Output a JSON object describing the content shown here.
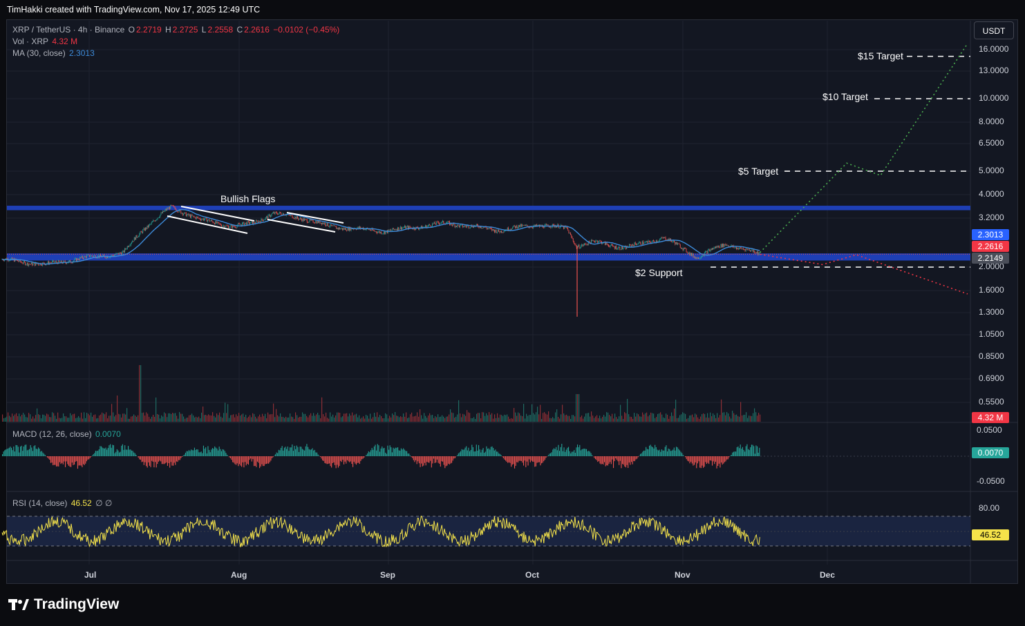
{
  "header": {
    "caption": "TimHakki created with TradingView.com, Nov 17, 2025 12:49 UTC"
  },
  "legend": {
    "symbol": "XRP / TetherUS · 4h · Binance",
    "o_label": "O",
    "o_value": "2.2719",
    "h_label": "H",
    "h_value": "2.2725",
    "l_label": "L",
    "l_value": "2.2558",
    "c_label": "C",
    "c_value": "2.2616",
    "change": "−0.0102 (−0.45%)",
    "vol_label": "Vol · XRP",
    "vol_value": "4.32 M",
    "ma_label": "MA (30, close)",
    "ma_value": "2.3013",
    "macd_label": "MACD (12, 26, close)",
    "macd_value": "0.0070",
    "rsi_label": "RSI (14, close)",
    "rsi_value": "46.52",
    "rsi_extra": "∅ ∅"
  },
  "currency_button": "USDT",
  "badges": {
    "ma": "2.3013",
    "close": "2.2616",
    "support": "2.2149",
    "volume": "4.32 M",
    "macd": "0.0070",
    "rsi": "46.52"
  },
  "annotations": {
    "bullish_flags": "Bullish Flags",
    "support_2": "$2 Support",
    "target_5": "$5 Target",
    "target_10": "$10 Target",
    "target_15": "$15 Target"
  },
  "brand": {
    "name": "TradingView"
  },
  "colors": {
    "bg": "#131722",
    "up": "#26a69a",
    "down": "#ef5350",
    "ma": "#3d8bd9",
    "zone": "#1e3fb5",
    "rsi": "#f5e34a",
    "bull_path": "#4caf50",
    "bear_path": "#f23645"
  },
  "chart_data": {
    "type": "candlestick",
    "title": "XRP / TetherUS · 4h · Binance",
    "y_scale": "log",
    "y_ticks": [
      "16.0000",
      "13.0000",
      "10.0000",
      "8.0000",
      "6.5000",
      "5.0000",
      "4.0000",
      "3.2000",
      "2.0000",
      "1.6000",
      "1.3000",
      "1.0500",
      "0.8500",
      "0.6900",
      "0.5500"
    ],
    "x_ticks": [
      "Jul",
      "Aug",
      "Sep",
      "Oct",
      "Nov",
      "Dec"
    ],
    "price_path": [
      {
        "t": "Jun 13",
        "p": 2.15
      },
      {
        "t": "Jun 22",
        "p": 2.05
      },
      {
        "t": "Jul 1",
        "p": 2.2
      },
      {
        "t": "Jul 8",
        "p": 2.28
      },
      {
        "t": "Jul 12",
        "p": 2.85
      },
      {
        "t": "Jul 18",
        "p": 3.55
      },
      {
        "t": "Jul 24",
        "p": 3.15
      },
      {
        "t": "Jul 31",
        "p": 2.95
      },
      {
        "t": "Aug 4",
        "p": 3.05
      },
      {
        "t": "Aug 8",
        "p": 3.35
      },
      {
        "t": "Aug 14",
        "p": 3.2
      },
      {
        "t": "Aug 20",
        "p": 2.95
      },
      {
        "t": "Aug 31",
        "p": 2.82
      },
      {
        "t": "Sep 13",
        "p": 3.05
      },
      {
        "t": "Sep 24",
        "p": 2.85
      },
      {
        "t": "Oct 2",
        "p": 3.0
      },
      {
        "t": "Oct 8",
        "p": 2.9
      },
      {
        "t": "Oct 10",
        "p": 2.45
      },
      {
        "t": "Oct 14",
        "p": 2.55
      },
      {
        "t": "Oct 20",
        "p": 2.4
      },
      {
        "t": "Oct 28",
        "p": 2.65
      },
      {
        "t": "Nov 4",
        "p": 2.2
      },
      {
        "t": "Nov 10",
        "p": 2.5
      },
      {
        "t": "Nov 17",
        "p": 2.26
      }
    ],
    "flash_wick_low": 1.25,
    "ma30_last": 2.3013,
    "last_close": 2.2616,
    "support_zone": [
      2.13,
      2.28
    ],
    "resistance_zone": [
      3.45,
      3.6
    ],
    "support_line": 2.0,
    "targets": [
      5,
      10,
      15
    ],
    "bull_projection": [
      {
        "t": "Nov 17",
        "p": 2.3
      },
      {
        "t": "Dec 5",
        "p": 5.4
      },
      {
        "t": "Dec 12",
        "p": 4.8
      },
      {
        "t": "Dec 30",
        "p": 17.0
      }
    ],
    "bear_projection": [
      {
        "t": "Nov 17",
        "p": 2.26
      },
      {
        "t": "Nov 30",
        "p": 2.05
      },
      {
        "t": "Dec 7",
        "p": 2.25
      },
      {
        "t": "Dec 30",
        "p": 1.55
      }
    ],
    "volume_last": "4.32 M",
    "macd_ticks": [
      "0.0500",
      "-0.0500"
    ],
    "macd_last": 0.007,
    "rsi_ticks": [
      "80.00"
    ],
    "rsi_last": 46.52
  }
}
